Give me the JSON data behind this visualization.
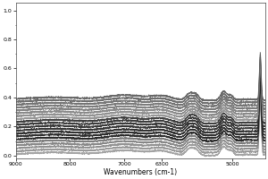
{
  "x_min": 9000,
  "x_max": 4400,
  "y_min": -0.02,
  "y_max": 1.05,
  "xlabel": "Wavenumbers (cm-1)",
  "ylabel": "",
  "n_spectra": 20,
  "background_color": "#ffffff",
  "xticks": [
    9000,
    8000,
    7000,
    6300,
    5000
  ],
  "tick_fontsize": 4.5,
  "xlabel_fontsize": 5.5,
  "figsize": [
    3.0,
    2.0
  ],
  "dpi": 100
}
